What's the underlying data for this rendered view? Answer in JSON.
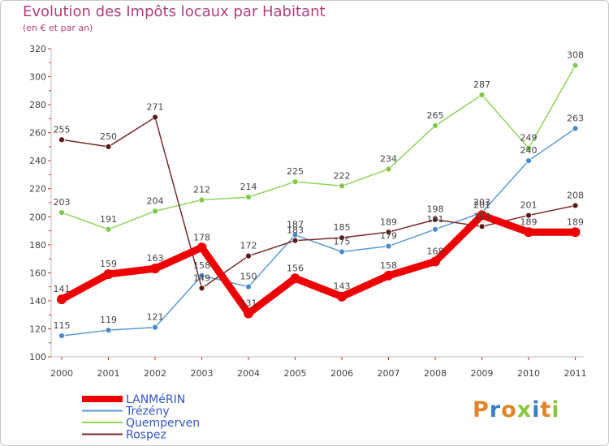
{
  "title": "Evolution des Impôts locaux par Habitant",
  "subtitle": "(en € et par an)",
  "logo": {
    "text": "Proxiti",
    "letters": [
      "P",
      "r",
      "o",
      "x",
      "i",
      "t",
      "i"
    ],
    "colors": [
      "#e0862a",
      "#3b7fc4",
      "#e0862a",
      "#8cc63f",
      "#3b7fc4",
      "#e0862a",
      "#8cc63f"
    ]
  },
  "chart_data": {
    "type": "line",
    "title": "Evolution des Impôts locaux par Habitant",
    "subtitle": "(en € et par an)",
    "categories": [
      "2000",
      "2001",
      "2002",
      "2003",
      "2004",
      "2005",
      "2006",
      "2007",
      "2008",
      "2009",
      "2010",
      "2011"
    ],
    "ylim": [
      100,
      320
    ],
    "yticks": [
      100,
      120,
      140,
      160,
      180,
      200,
      220,
      240,
      260,
      280,
      300,
      320
    ],
    "grid": false,
    "legend_position": "bottom-left",
    "series": [
      {
        "name": "Quemperven",
        "color": "#8fd45a",
        "marker": "#7fc94a",
        "values": [
          203,
          191,
          204,
          212,
          214,
          225,
          222,
          234,
          265,
          287,
          249,
          308
        ],
        "labels": [
          "203",
          "191",
          "204",
          "212",
          "214",
          "225",
          "222",
          "234",
          "265",
          "287",
          "249",
          "308"
        ]
      },
      {
        "name": "Trézény",
        "color": "#5a9ad4",
        "marker": "#4a8ac9",
        "values": [
          115,
          119,
          121,
          158,
          150,
          187,
          175,
          179,
          191,
          203,
          240,
          263
        ],
        "labels": [
          "115",
          "119",
          "121",
          "158",
          "150",
          "187",
          "175",
          "179",
          "191",
          "203",
          "240",
          "263"
        ]
      },
      {
        "name": "Rospez",
        "color": "#7a2a2a",
        "marker": "#5a1a1a",
        "values": [
          255,
          250,
          271,
          149,
          172,
          183,
          185,
          189,
          198,
          193,
          201,
          208
        ],
        "labels": [
          "255",
          "250",
          "271",
          "149",
          "172",
          "183",
          "185",
          "189",
          "198",
          "193",
          "201",
          "208"
        ]
      },
      {
        "name": "LANMéRIN",
        "color": "#ee0000",
        "marker": "#ee0000",
        "values": [
          141,
          159,
          163,
          178,
          131,
          156,
          143,
          158,
          168,
          201,
          189,
          189
        ],
        "labels": [
          "141",
          "159",
          "163",
          "178",
          "131",
          "156",
          "143",
          "158",
          "168",
          "201",
          "189",
          "189"
        ]
      }
    ],
    "legend_order": [
      "LANMéRIN",
      "Trézény",
      "Quemperven",
      "Rospez"
    ]
  }
}
